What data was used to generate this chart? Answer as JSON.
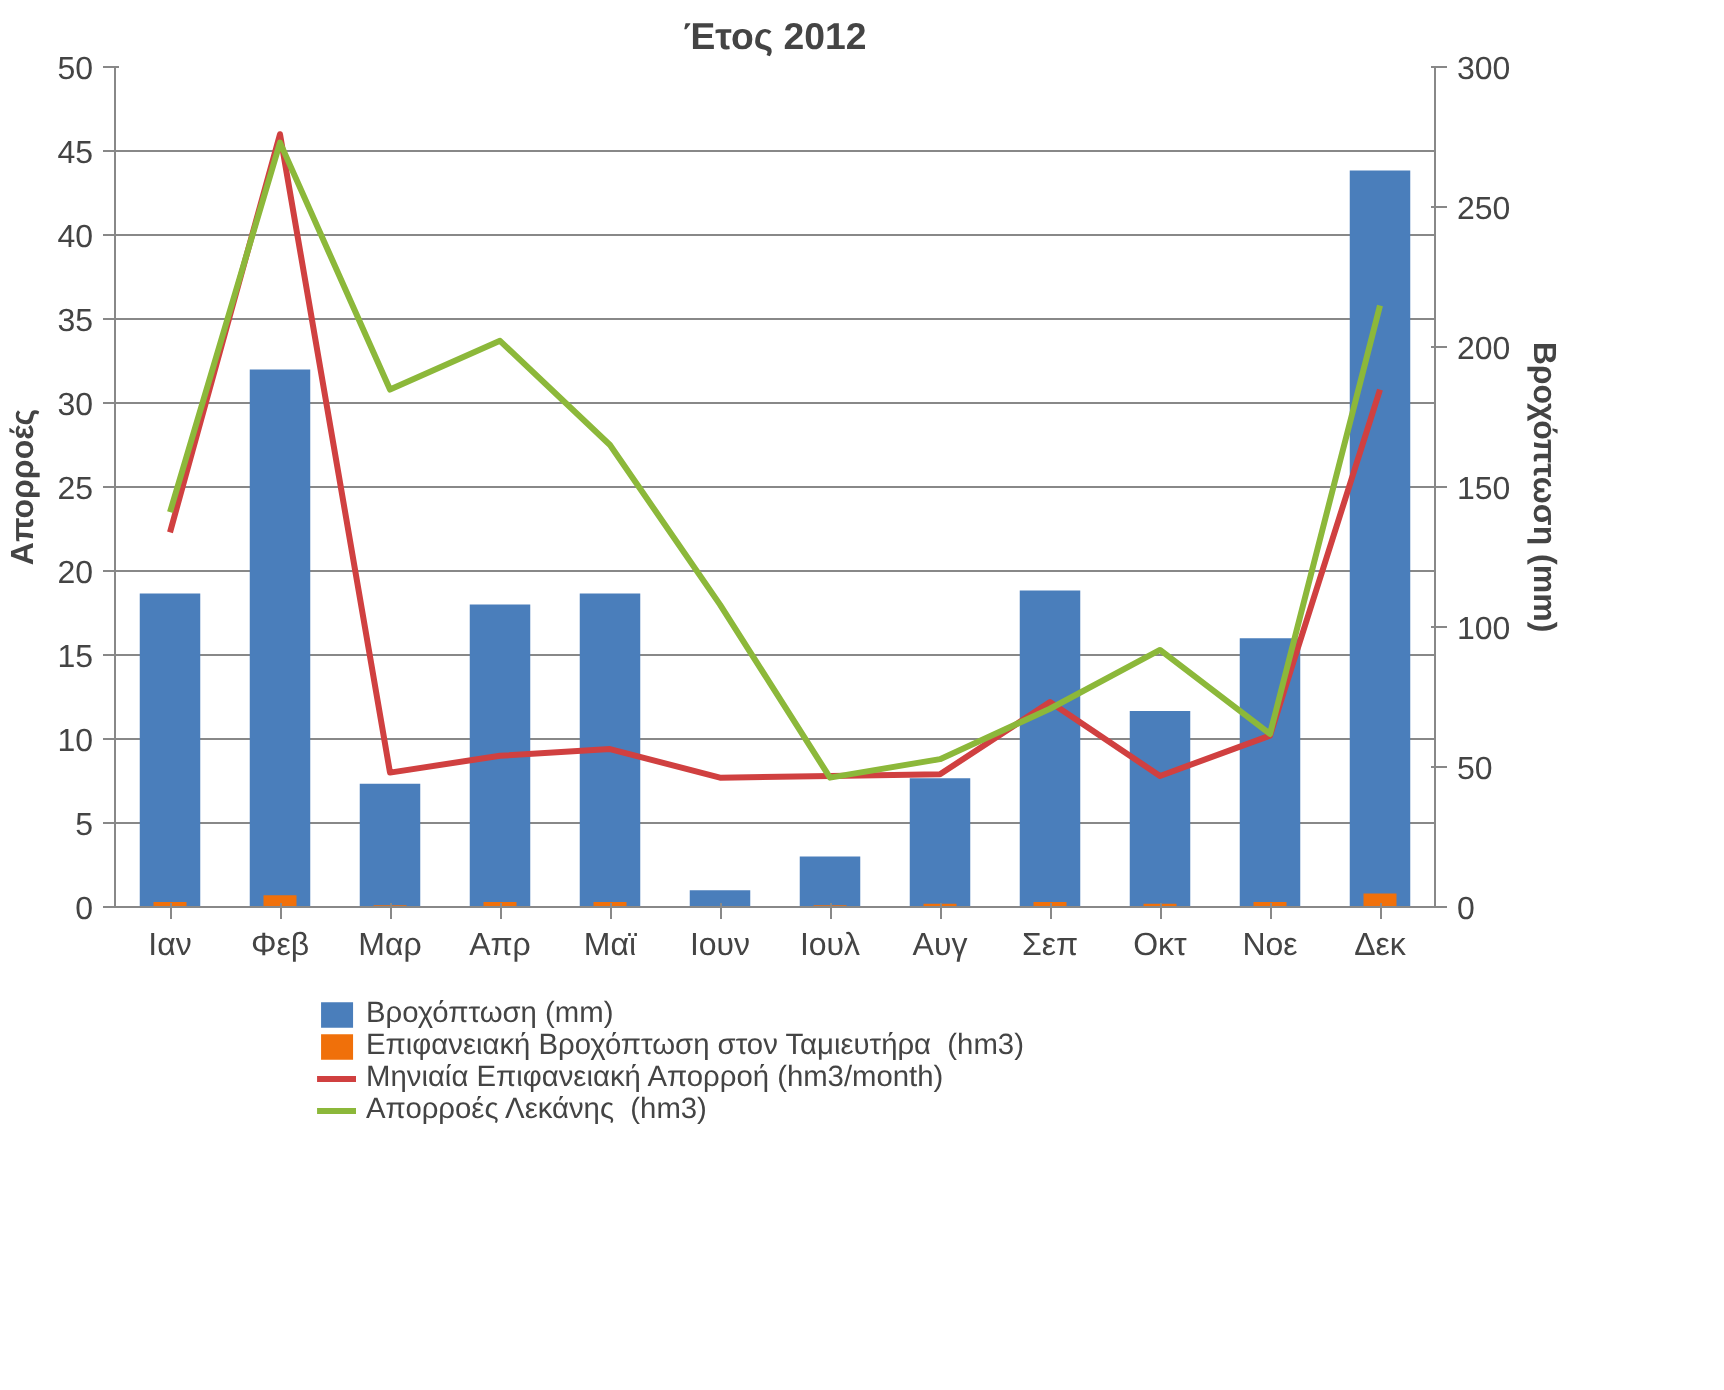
{
  "chart_data": {
    "type": "bar",
    "title": "Έτος 2012",
    "ylabel": "Απορροές",
    "y2label": "Βροχόπτωση (mm)",
    "categories": [
      "Ιαν",
      "Φεβ",
      "Μαρ",
      "Απρ",
      "Μαϊ",
      "Ιουν",
      "Ιουλ",
      "Αυγ",
      "Σεπ",
      "Οκτ",
      "Νοε",
      "Δεκ"
    ],
    "series": [
      {
        "name": "Βροχόπτωση (mm)",
        "axis": "y2",
        "color": "#4a7ebb",
        "values": [
          112,
          192,
          44,
          108,
          112,
          6,
          18,
          46,
          113,
          70,
          96,
          263
        ]
      },
      {
        "name": "Επιφανειακή Βροχόπτωση στον Ταμιευτήρα  (hm3)",
        "color": "#f0700a",
        "values": [
          0.3,
          0.7,
          0.1,
          0.3,
          0.3,
          0,
          0.1,
          0.2,
          0.3,
          0.2,
          0.3,
          0.8
        ]
      },
      {
        "name": "Μηνιαία Επιφανειακή Απορροή (hm3/month)",
        "type": "line",
        "color": "#d04040",
        "values": [
          22.3,
          46,
          8.0,
          9.0,
          9.4,
          7.7,
          7.8,
          7.9,
          12.2,
          7.8,
          10.2,
          30.8
        ]
      },
      {
        "name": "Απορροές Λεκάνης  (hm3)",
        "type": "line",
        "color": "#8cb83a",
        "values": [
          23.5,
          45.5,
          30.8,
          33.7,
          27.5,
          18,
          7.7,
          8.8,
          11.8,
          15.3,
          10.3,
          35.8
        ]
      }
    ],
    "ylim": [
      0,
      50
    ],
    "yticks": [
      0,
      5,
      10,
      15,
      20,
      25,
      30,
      35,
      40,
      45,
      50
    ],
    "y2lim": [
      0,
      300
    ],
    "y2ticks": [
      0,
      50,
      100,
      150,
      200,
      250,
      300
    ],
    "grid": "y",
    "legend": "bottom",
    "marker": "none",
    "line_style": "solid"
  }
}
